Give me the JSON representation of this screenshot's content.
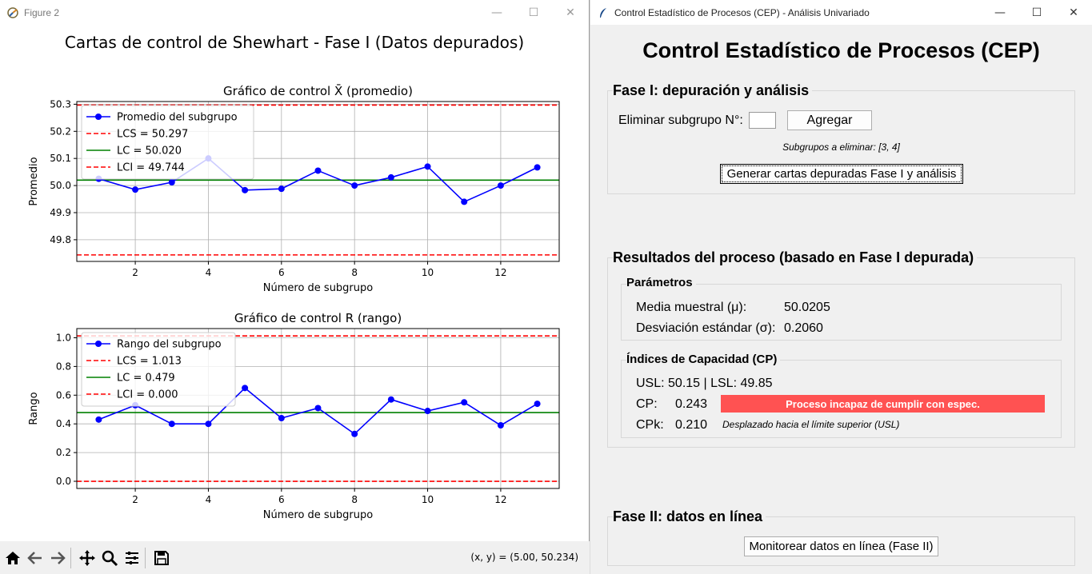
{
  "figure_window": {
    "title": "Figure 2",
    "suptitle": "Cartas de control de Shewhart - Fase I (Datos depurados)",
    "coord_readout": "(x, y) = (5.00, 50.234)",
    "toolbar": {
      "home": "home-icon",
      "back": "back-arrow-icon",
      "forward": "forward-arrow-icon",
      "pan": "pan-icon",
      "zoom": "zoom-icon",
      "configure": "configure-subplots-icon",
      "save": "save-icon"
    }
  },
  "chart_data": [
    {
      "type": "line",
      "title": "Gráfico de control X̄ (promedio)",
      "xlabel": "Número de subgrupo",
      "ylabel": "Promedio",
      "xlim": [
        0.4,
        13.6
      ],
      "ylim": [
        49.72,
        50.31
      ],
      "xticks": [
        2,
        4,
        6,
        8,
        10,
        12
      ],
      "yticks": [
        49.8,
        49.9,
        50.0,
        50.1,
        50.2,
        50.3
      ],
      "ytick_labels": [
        "49.8",
        "49.9",
        "50.0",
        "50.1",
        "50.2",
        "50.3"
      ],
      "grid": true,
      "legend_position": "top-left",
      "x": [
        1,
        2,
        3,
        4,
        5,
        6,
        7,
        8,
        9,
        10,
        11,
        12,
        13
      ],
      "series": [
        {
          "name": "Promedio del subgrupo",
          "values": [
            50.025,
            49.985,
            50.012,
            50.1,
            49.983,
            49.988,
            50.055,
            50.0,
            50.03,
            50.07,
            49.94,
            50.0,
            50.067
          ],
          "color": "#0000ff",
          "style": "line-marker"
        }
      ],
      "hlines": [
        {
          "name": "LCS = 50.297",
          "value": 50.297,
          "color": "#ff0000",
          "style": "dashed"
        },
        {
          "name": "LC = 50.020",
          "value": 50.02,
          "color": "#008000",
          "style": "solid"
        },
        {
          "name": "LCI = 49.744",
          "value": 49.744,
          "color": "#ff0000",
          "style": "dashed"
        }
      ]
    },
    {
      "type": "line",
      "title": "Gráfico de control R (rango)",
      "xlabel": "Número de subgrupo",
      "ylabel": "Rango",
      "xlim": [
        0.4,
        13.6
      ],
      "ylim": [
        -0.05,
        1.064
      ],
      "xticks": [
        2,
        4,
        6,
        8,
        10,
        12
      ],
      "yticks": [
        0.0,
        0.2,
        0.4,
        0.6,
        0.8,
        1.0
      ],
      "ytick_labels": [
        "0.0",
        "0.2",
        "0.4",
        "0.6",
        "0.8",
        "1.0"
      ],
      "grid": true,
      "legend_position": "top-left",
      "x": [
        1,
        2,
        3,
        4,
        5,
        6,
        7,
        8,
        9,
        10,
        11,
        12,
        13
      ],
      "series": [
        {
          "name": "Rango del subgrupo",
          "values": [
            0.43,
            0.53,
            0.4,
            0.4,
            0.65,
            0.44,
            0.51,
            0.33,
            0.57,
            0.49,
            0.55,
            0.39,
            0.54
          ],
          "color": "#0000ff",
          "style": "line-marker"
        }
      ],
      "hlines": [
        {
          "name": "LCS = 1.013",
          "value": 1.013,
          "color": "#ff0000",
          "style": "dashed"
        },
        {
          "name": "LC = 0.479",
          "value": 0.479,
          "color": "#008000",
          "style": "solid"
        },
        {
          "name": "LCI = 0.000",
          "value": 0.0,
          "color": "#ff0000",
          "style": "dashed"
        }
      ]
    }
  ],
  "app_window": {
    "title": "Control Estadístico de Procesos (CEP) - Análisis Univariado",
    "heading": "Control Estadístico de Procesos (CEP)",
    "phase1": {
      "label": "Fase I: depuración y análisis",
      "remove_label": "Eliminar subgrupo N°:",
      "remove_value": "",
      "add_button": "Agregar",
      "pending_text": "Subgrupos a eliminar: [3, 4]",
      "generate_button": "Generar cartas depuradas Fase I y análisis"
    },
    "results": {
      "label": "Resultados del proceso (basado en Fase I depurada)",
      "params": {
        "label": "Parámetros",
        "mean_label": "Media muestral (μ):",
        "mean_value": "50.0205",
        "std_label": "Desviación estándar (σ):",
        "std_value": "0.2060"
      },
      "capability": {
        "label": "Índices de Capacidad (CP)",
        "limits_text": "USL: 50.15 | LSL: 49.85",
        "cp_label": "CP:",
        "cp_value": "0.243",
        "cp_status": "Proceso incapaz de cumplir con espec.",
        "cp_status_color": "#ff5252",
        "cpk_label": "CPk:",
        "cpk_value": "0.210",
        "cpk_note": "Desplazado hacia el límite superior (USL)"
      }
    },
    "phase2": {
      "label": "Fase II: datos en línea",
      "monitor_button": "Monitorear datos en línea (Fase II)"
    }
  }
}
